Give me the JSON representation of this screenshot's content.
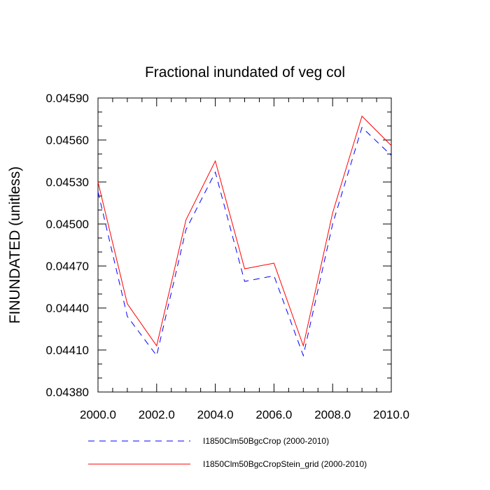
{
  "chart_data": {
    "type": "line",
    "title": "Fractional inundated of veg col",
    "xlabel": "",
    "ylabel": "FINUNDATED  (unitless)",
    "xlim": [
      2000.0,
      2010.0
    ],
    "ylim": [
      0.0438,
      0.0459
    ],
    "x": [
      2000,
      2001,
      2002,
      2003,
      2004,
      2005,
      2006,
      2007,
      2008,
      2009,
      2010
    ],
    "x_ticks": [
      "2000.0",
      "2002.0",
      "2004.0",
      "2006.0",
      "2008.0",
      "2010.0"
    ],
    "x_tick_values": [
      2000,
      2002,
      2004,
      2006,
      2008,
      2010
    ],
    "y_ticks": [
      "0.04380",
      "0.04410",
      "0.04440",
      "0.04470",
      "0.04500",
      "0.04530",
      "0.04560",
      "0.04590"
    ],
    "y_tick_values": [
      0.0438,
      0.0441,
      0.0444,
      0.0447,
      0.045,
      0.0453,
      0.0456,
      0.0459
    ],
    "grid": false,
    "legend_position": "bottom",
    "series": [
      {
        "name": "I1850Clm50BgcCrop (2000-2010)",
        "color": "#0000ff",
        "dash": "dashed",
        "values": [
          0.04523,
          0.04434,
          0.04406,
          0.04496,
          0.04537,
          0.04459,
          0.04463,
          0.04406,
          0.045,
          0.04569,
          0.04549
        ]
      },
      {
        "name": "I1850Clm50BgcCropStein_grid (2000-2010)",
        "color": "#ff0000",
        "dash": "solid",
        "values": [
          0.0453,
          0.04443,
          0.04413,
          0.04503,
          0.04545,
          0.04468,
          0.04472,
          0.04413,
          0.04508,
          0.04577,
          0.04556
        ]
      }
    ]
  }
}
